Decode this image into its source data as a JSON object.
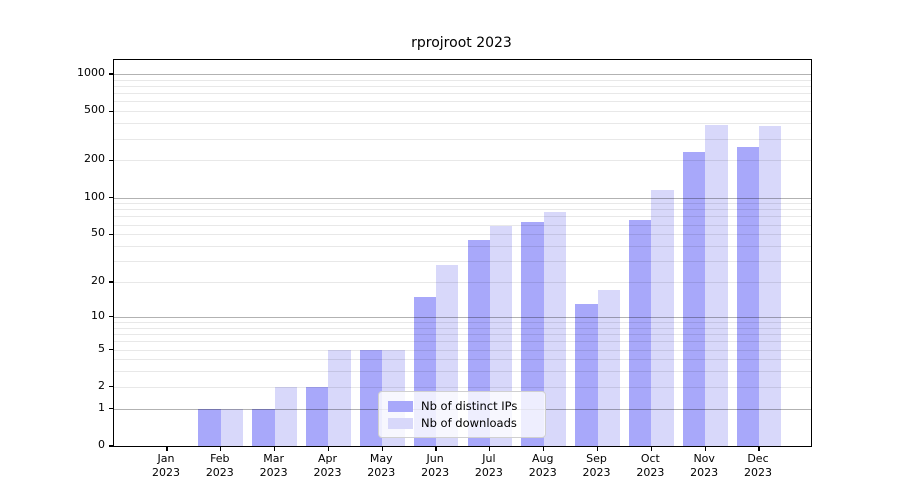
{
  "title": "rprojroot 2023",
  "colors": {
    "distinct_ips": "#a8a8fa",
    "downloads": "#d8d8fa",
    "spine": "#000000",
    "grid_minor": "rgba(0,0,0,0.09)",
    "grid_major": "rgba(0,0,0,0.30)",
    "legend_bg": "rgba(255,255,255,0.8)",
    "legend_border": "#d0d0d0"
  },
  "y_axis": {
    "ticks": [
      0,
      1,
      2,
      5,
      10,
      20,
      50,
      100,
      200,
      500,
      1000
    ],
    "tick_labels": [
      "0",
      "1",
      "2",
      "5",
      "10",
      "20",
      "50",
      "100",
      "200",
      "500",
      "1000"
    ],
    "minor_gridlines": [
      2,
      3,
      4,
      5,
      6,
      7,
      8,
      9,
      20,
      30,
      40,
      50,
      60,
      70,
      80,
      90,
      200,
      300,
      400,
      500,
      600,
      700,
      800,
      900
    ],
    "major_gridlines": [
      1,
      10,
      100,
      1000
    ]
  },
  "x_axis": {
    "categories": [
      {
        "month": "Jan",
        "year": "2023"
      },
      {
        "month": "Feb",
        "year": "2023"
      },
      {
        "month": "Mar",
        "year": "2023"
      },
      {
        "month": "Apr",
        "year": "2023"
      },
      {
        "month": "May",
        "year": "2023"
      },
      {
        "month": "Jun",
        "year": "2023"
      },
      {
        "month": "Jul",
        "year": "2023"
      },
      {
        "month": "Aug",
        "year": "2023"
      },
      {
        "month": "Sep",
        "year": "2023"
      },
      {
        "month": "Oct",
        "year": "2023"
      },
      {
        "month": "Nov",
        "year": "2023"
      },
      {
        "month": "Dec",
        "year": "2023"
      }
    ]
  },
  "legend": {
    "items": [
      {
        "label": "Nb of distinct IPs",
        "color": "#a8a8fa"
      },
      {
        "label": "Nb of downloads",
        "color": "#d8d8fa"
      }
    ]
  },
  "chart_data": {
    "type": "bar",
    "title": "rprojroot 2023",
    "categories": [
      "Jan 2023",
      "Feb 2023",
      "Mar 2023",
      "Apr 2023",
      "May 2023",
      "Jun 2023",
      "Jul 2023",
      "Aug 2023",
      "Sep 2023",
      "Oct 2023",
      "Nov 2023",
      "Dec 2023"
    ],
    "series": [
      {
        "name": "Nb of distinct IPs",
        "color": "#a8a8fa",
        "values": [
          0,
          1,
          1,
          2,
          5,
          15,
          45,
          63,
          13,
          66,
          233,
          258
        ]
      },
      {
        "name": "Nb of downloads",
        "color": "#d8d8fa",
        "values": [
          0,
          1,
          2,
          5,
          5,
          28,
          58,
          76,
          17,
          115,
          385,
          378
        ]
      }
    ],
    "xlabel": "",
    "ylabel": "",
    "yscale": "log1p (symlog-like, y = log10(1+v))",
    "ylim": [
      0,
      1000
    ],
    "yticks": [
      0,
      1,
      2,
      5,
      10,
      20,
      50,
      100,
      200,
      500,
      1000
    ],
    "grid": true,
    "legend_position": "lower center"
  }
}
